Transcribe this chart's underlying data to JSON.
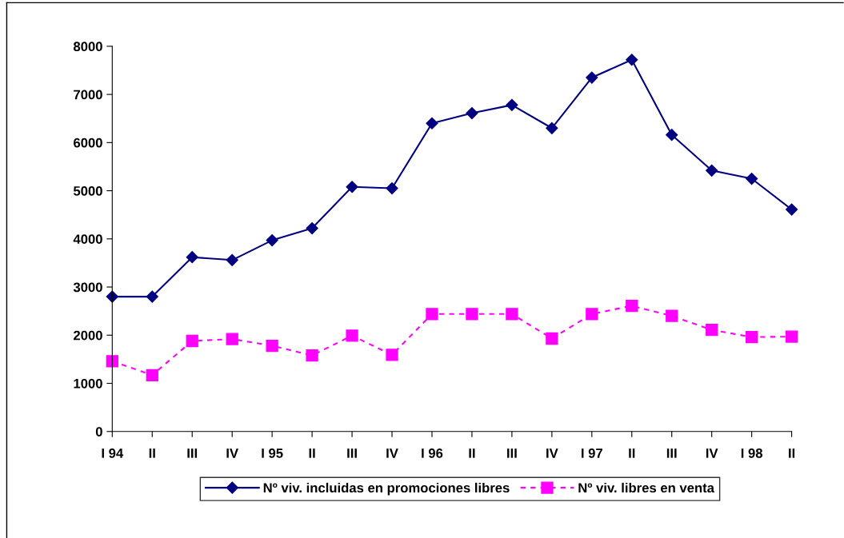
{
  "chart_data": {
    "type": "line",
    "categories": [
      "I 94",
      "II",
      "III",
      "IV",
      "I 95",
      "II",
      "III",
      "IV",
      "I 96",
      "II",
      "III",
      "IV",
      "I 97",
      "II",
      "III",
      "IV",
      "I 98",
      "II"
    ],
    "series": [
      {
        "name": "Nº viv. incluidas en promociones libres",
        "color": "#000080",
        "marker": "diamond",
        "line_style": "solid",
        "values": [
          2800,
          2800,
          3620,
          3560,
          3970,
          4220,
          5080,
          5050,
          6400,
          6610,
          6780,
          6300,
          7350,
          7720,
          6160,
          5420,
          5250,
          4610
        ]
      },
      {
        "name": "Nº viv. libres en venta",
        "color": "#ff00ff",
        "marker": "square",
        "line_style": "dashed",
        "values": [
          1460,
          1170,
          1880,
          1920,
          1780,
          1580,
          1990,
          1590,
          2440,
          2440,
          2440,
          1930,
          2440,
          2610,
          2400,
          2110,
          1960,
          1970
        ]
      }
    ],
    "ylim": [
      0,
      8000
    ],
    "yticks": [
      0,
      1000,
      2000,
      3000,
      4000,
      5000,
      6000,
      7000,
      8000
    ],
    "grid": false,
    "legend": "bottom"
  }
}
